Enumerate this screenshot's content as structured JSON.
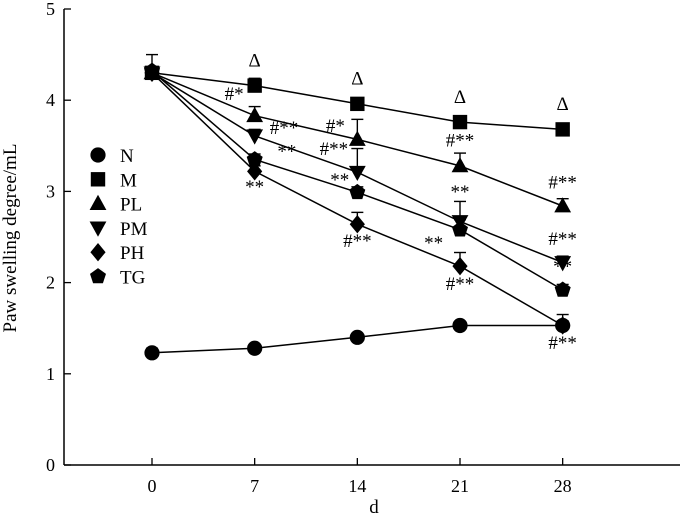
{
  "chart_data": {
    "type": "line",
    "xlabel": "d",
    "ylabel": "Paw swelling degree/mL",
    "x": [
      0,
      7,
      14,
      21,
      28
    ],
    "xticks": [
      "0",
      "7",
      "14",
      "21",
      "28"
    ],
    "yticks": [
      "0",
      "1",
      "2",
      "3",
      "4",
      "5"
    ],
    "xlim": [
      -6,
      36
    ],
    "ylim": [
      0,
      5
    ],
    "grid": false,
    "legend": "top-left",
    "series": [
      {
        "name": "N",
        "marker": "circle",
        "values": [
          1.23,
          1.28,
          1.4,
          1.53,
          1.53
        ],
        "errors": [
          0.05,
          0.02,
          0.02,
          0.03,
          0.12
        ]
      },
      {
        "name": "M",
        "marker": "square",
        "values": [
          4.3,
          4.16,
          3.96,
          3.76,
          3.68
        ],
        "errors": [
          0.04,
          0.08,
          0.06,
          0.05,
          0.04
        ]
      },
      {
        "name": "PL",
        "marker": "triangle",
        "values": [
          4.3,
          3.83,
          3.57,
          3.28,
          2.84
        ],
        "errors": [
          0.04,
          0.1,
          0.22,
          0.14,
          0.08
        ]
      },
      {
        "name": "PM",
        "marker": "triangle-down",
        "values": [
          4.3,
          3.61,
          3.21,
          2.67,
          2.22
        ],
        "errors": [
          0.04,
          0.07,
          0.26,
          0.22,
          0.07
        ]
      },
      {
        "name": "PH",
        "marker": "diamond",
        "values": [
          4.3,
          3.22,
          2.64,
          2.18,
          1.53
        ],
        "errors": [
          0.04,
          0.06,
          0.13,
          0.15,
          0.05
        ]
      },
      {
        "name": "TG",
        "marker": "pentagon",
        "values": [
          4.32,
          3.35,
          2.99,
          2.58,
          1.92
        ],
        "errors": [
          0.18,
          0.06,
          0.06,
          0.11,
          0.06
        ]
      }
    ],
    "annotations": [
      {
        "text": "Δ",
        "x": 7,
        "y": 4.37
      },
      {
        "text": "Δ",
        "x": 14,
        "y": 4.17
      },
      {
        "text": "Δ",
        "x": 21,
        "y": 3.97
      },
      {
        "text": "Δ",
        "x": 28,
        "y": 3.89
      },
      {
        "text": "#*",
        "x": 5.6,
        "y": 4.0
      },
      {
        "text": "#**",
        "x": 9.0,
        "y": 3.63
      },
      {
        "text": "**",
        "x": 9.2,
        "y": 3.37
      },
      {
        "text": "**",
        "x": 7,
        "y": 2.98
      },
      {
        "text": "#*",
        "x": 12.5,
        "y": 3.65
      },
      {
        "text": "#**",
        "x": 12.4,
        "y": 3.4
      },
      {
        "text": "**",
        "x": 12.8,
        "y": 3.06
      },
      {
        "text": "#**",
        "x": 14,
        "y": 2.39
      },
      {
        "text": "#**",
        "x": 21,
        "y": 3.49
      },
      {
        "text": "**",
        "x": 21,
        "y": 2.93
      },
      {
        "text": "**",
        "x": 19.2,
        "y": 2.37
      },
      {
        "text": "#**",
        "x": 21,
        "y": 1.92
      },
      {
        "text": "#**",
        "x": 28,
        "y": 3.03
      },
      {
        "text": "#**",
        "x": 28,
        "y": 2.41
      },
      {
        "text": "**",
        "x": 28,
        "y": 2.11
      },
      {
        "text": "#**",
        "x": 28,
        "y": 1.27
      }
    ]
  }
}
